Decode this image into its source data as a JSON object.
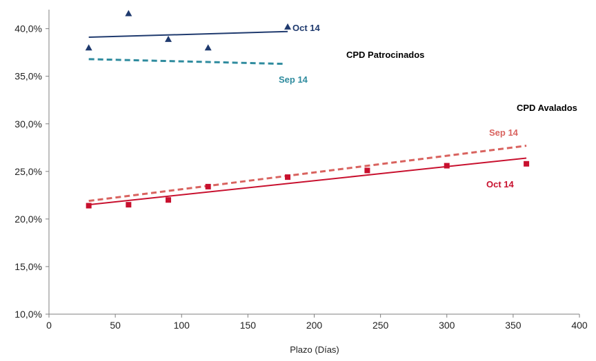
{
  "chart_data": {
    "type": "scatter",
    "title": "",
    "xlabel": "Plazo (Días)",
    "ylabel": "",
    "xlim": [
      0,
      400
    ],
    "ylim": [
      0.1,
      0.42
    ],
    "x_ticks": [
      0,
      50,
      100,
      150,
      200,
      250,
      300,
      350,
      400
    ],
    "y_ticks": [
      0.1,
      0.15,
      0.2,
      0.25,
      0.3,
      0.35,
      0.4
    ],
    "y_tick_labels": [
      "10,0%",
      "15,0%",
      "20,0%",
      "25,0%",
      "30,0%",
      "35,0%",
      "40,0%"
    ],
    "grid": false,
    "series": [
      {
        "name": "Oct 14",
        "group": "CPD Patrocinados",
        "marker": "triangle",
        "color": "#1f3a6e",
        "points": [
          {
            "x": 30,
            "y": 0.38
          },
          {
            "x": 60,
            "y": 0.416
          },
          {
            "x": 90,
            "y": 0.389
          },
          {
            "x": 120,
            "y": 0.38
          },
          {
            "x": 180,
            "y": 0.402
          }
        ]
      },
      {
        "name": "Oct 14",
        "group": "CPD Avalados",
        "marker": "square",
        "color": "#c8102e",
        "points": [
          {
            "x": 30,
            "y": 0.214
          },
          {
            "x": 60,
            "y": 0.215
          },
          {
            "x": 90,
            "y": 0.22
          },
          {
            "x": 120,
            "y": 0.234
          },
          {
            "x": 180,
            "y": 0.244
          },
          {
            "x": 240,
            "y": 0.251
          },
          {
            "x": 300,
            "y": 0.256
          },
          {
            "x": 360,
            "y": 0.258
          }
        ]
      }
    ],
    "trendlines": [
      {
        "name": "Oct 14",
        "group": "CPD Patrocinados",
        "style": "solid",
        "color": "#1f3a6e",
        "x": [
          30,
          180
        ],
        "y": [
          0.391,
          0.397
        ]
      },
      {
        "name": "Sep 14",
        "group": "CPD Patrocinados",
        "style": "dashed",
        "color": "#2e8b9e",
        "x": [
          30,
          178
        ],
        "y": [
          0.368,
          0.363
        ]
      },
      {
        "name": "Oct 14",
        "group": "CPD Avalados",
        "style": "solid",
        "color": "#c8102e",
        "x": [
          30,
          360
        ],
        "y": [
          0.215,
          0.264
        ]
      },
      {
        "name": "Sep 14",
        "group": "CPD Avalados",
        "style": "dashed",
        "color": "#d9635f",
        "x": [
          30,
          360
        ],
        "y": [
          0.219,
          0.277
        ]
      }
    ],
    "annotations": [
      {
        "text": "Oct 14",
        "color": "#1f3a6e"
      },
      {
        "text": "CPD Patrocinados",
        "color": "#000000"
      },
      {
        "text": "Sep 14",
        "color": "#2e8b9e"
      },
      {
        "text": "CPD Avalados",
        "color": "#000000"
      },
      {
        "text": "Sep 14",
        "color": "#d9635f"
      },
      {
        "text": "Oct 14",
        "color": "#c8102e"
      }
    ]
  }
}
